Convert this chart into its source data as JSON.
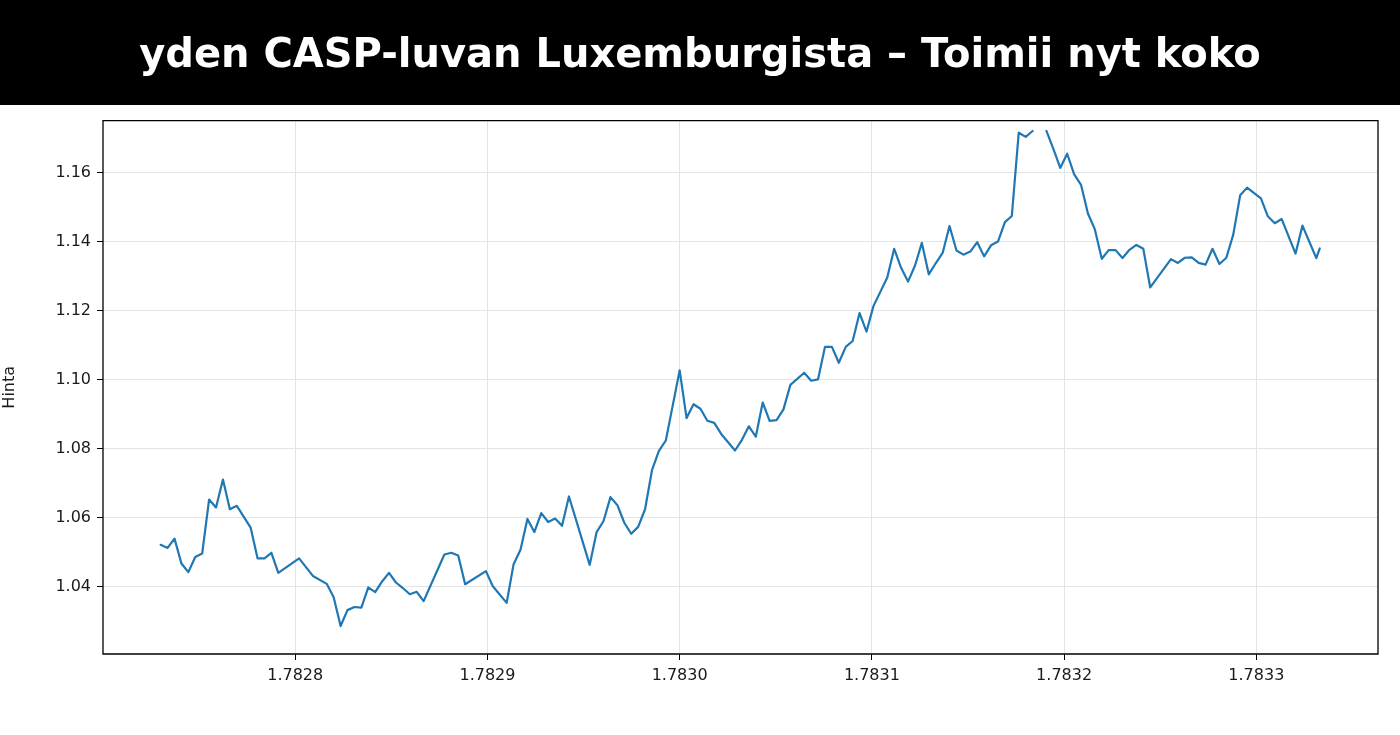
{
  "chart_data": {
    "type": "line",
    "title": "yden CASP-luvan Luxemburgista – Toimii nyt koko",
    "ylabel": "Hinta",
    "x": [
      1.78273,
      1.7827336,
      1.7827372,
      1.7827408,
      1.7827444,
      1.782748,
      1.7827516,
      1.7827552,
      1.7827588,
      1.7827624,
      1.782766,
      1.7827696,
      1.7827768,
      1.7827804,
      1.782784,
      1.7827876,
      1.7827912,
      1.782802,
      1.7828092,
      1.7828164,
      1.78282,
      1.7828236,
      1.7828272,
      1.7828308,
      1.7828344,
      1.782838,
      1.7828416,
      1.7828452,
      1.7828488,
      1.7828524,
      1.782856,
      1.7828596,
      1.7828632,
      1.7828668,
      1.7828776,
      1.7828812,
      1.7828848,
      1.7828884,
      1.7828992,
      1.7829028,
      1.78291,
      1.7829136,
      1.7829172,
      1.7829208,
      1.7829244,
      1.782928,
      1.7829316,
      1.7829352,
      1.7829388,
      1.7829424,
      1.7829532,
      1.7829568,
      1.7829604,
      1.782964,
      1.7829676,
      1.7829712,
      1.7829748,
      1.7829784,
      1.782982,
      1.7829856,
      1.7829892,
      1.7829928,
      1.783,
      1.7830036,
      1.7830072,
      1.7830108,
      1.7830144,
      1.783018,
      1.7830216,
      1.7830288,
      1.7830324,
      1.783036,
      1.7830396,
      1.7830432,
      1.7830468,
      1.7830504,
      1.783054,
      1.7830576,
      1.7830648,
      1.7830684,
      1.783072,
      1.7830756,
      1.7830792,
      1.7830828,
      1.7830864,
      1.78309,
      1.7830936,
      1.7830972,
      1.7831008,
      1.783108,
      1.7831116,
      1.7831152,
      1.7831188,
      1.7831224,
      1.783126,
      1.7831296,
      1.7831332,
      1.7831368,
      1.7831404,
      1.783144,
      1.7831476,
      1.7831512,
      1.7831548,
      1.7831584,
      1.783162,
      1.7831656,
      1.7831692,
      1.7831728,
      1.7831764,
      1.78318,
      1.7831836,
      1.7831872,
      1.7831908,
      1.7831944,
      1.783198,
      1.7832016,
      1.7832052,
      1.7832088,
      1.7832124,
      1.783216,
      1.7832196,
      1.7832232,
      1.7832268,
      1.7832304,
      1.783234,
      1.7832376,
      1.7832412,
      1.7832448,
      1.7832556,
      1.7832592,
      1.7832628,
      1.7832664,
      1.78327,
      1.7832736,
      1.7832772,
      1.7832808,
      1.7832844,
      1.783288,
      1.7832916,
      1.7832952,
      1.7833024,
      1.783306,
      1.7833096,
      1.7833132,
      1.7833204,
      1.783324,
      1.7833312,
      1.783333
    ],
    "series": [
      {
        "color": "#1f77b4",
        "values": [
          1.0522,
          1.0513,
          1.054,
          1.0468,
          1.0443,
          1.0487,
          1.0497,
          1.0653,
          1.063,
          1.0711,
          1.0625,
          1.0635,
          1.0572,
          1.0483,
          1.0483,
          1.0499,
          1.0441,
          1.0483,
          1.0432,
          1.0409,
          1.037,
          1.0287,
          1.0333,
          1.0342,
          1.034,
          1.0399,
          1.0385,
          1.0416,
          1.0441,
          1.0413,
          1.0397,
          1.0379,
          1.0386,
          1.0359,
          1.0494,
          1.0499,
          1.0491,
          1.0408,
          1.0446,
          1.0402,
          1.0354,
          1.0466,
          1.0508,
          1.0597,
          1.0559,
          1.0614,
          1.0588,
          1.0598,
          1.0577,
          1.0662,
          1.0464,
          1.0559,
          1.0591,
          1.066,
          1.0637,
          1.0586,
          1.0554,
          1.0574,
          1.0625,
          1.0738,
          1.0794,
          1.0824,
          1.1027,
          1.0889,
          1.0929,
          1.0916,
          1.0881,
          1.0875,
          1.0843,
          1.0795,
          1.0826,
          1.0865,
          1.0835,
          1.0934,
          1.0881,
          1.0883,
          1.0914,
          1.0985,
          1.102,
          1.0997,
          1.1001,
          1.1095,
          1.1095,
          1.1049,
          1.1095,
          1.1112,
          1.1193,
          1.1139,
          1.1213,
          1.1296,
          1.1379,
          1.1324,
          1.1284,
          1.133,
          1.1396,
          1.1305,
          1.1337,
          1.1367,
          1.1445,
          1.1374,
          1.1362,
          1.1371,
          1.1398,
          1.1357,
          1.1389,
          1.14,
          1.1456,
          1.1474,
          1.1715,
          1.1703,
          1.172,
          null,
          1.172,
          1.1668,
          1.1613,
          1.1654,
          1.1595,
          1.1564,
          1.1481,
          1.1435,
          1.135,
          1.1375,
          1.1375,
          1.1352,
          1.1376,
          1.139,
          1.1379,
          1.1267,
          1.1349,
          1.1338,
          1.1353,
          1.1354,
          1.1338,
          1.1333,
          1.1379,
          1.1335,
          1.1353,
          1.142,
          1.1534,
          1.1556,
          1.1525,
          1.1473,
          1.1453,
          1.1465,
          1.1365,
          1.1446,
          1.1352,
          1.138
        ]
      }
    ],
    "xlim": [
      1.7827,
      1.7833633
    ],
    "ylim": [
      1.0206,
      1.175
    ],
    "xticks": [
      1.7828,
      1.7829,
      {
        "value": 1.783,
        "label": "1.7830"
      },
      1.7831,
      1.7832,
      1.7833
    ],
    "yticks": [
      1.04,
      1.06,
      1.08,
      {
        "value": 1.1,
        "label": "1.10"
      },
      1.12,
      1.14,
      1.16
    ],
    "grid": true,
    "line_style": "solid"
  }
}
